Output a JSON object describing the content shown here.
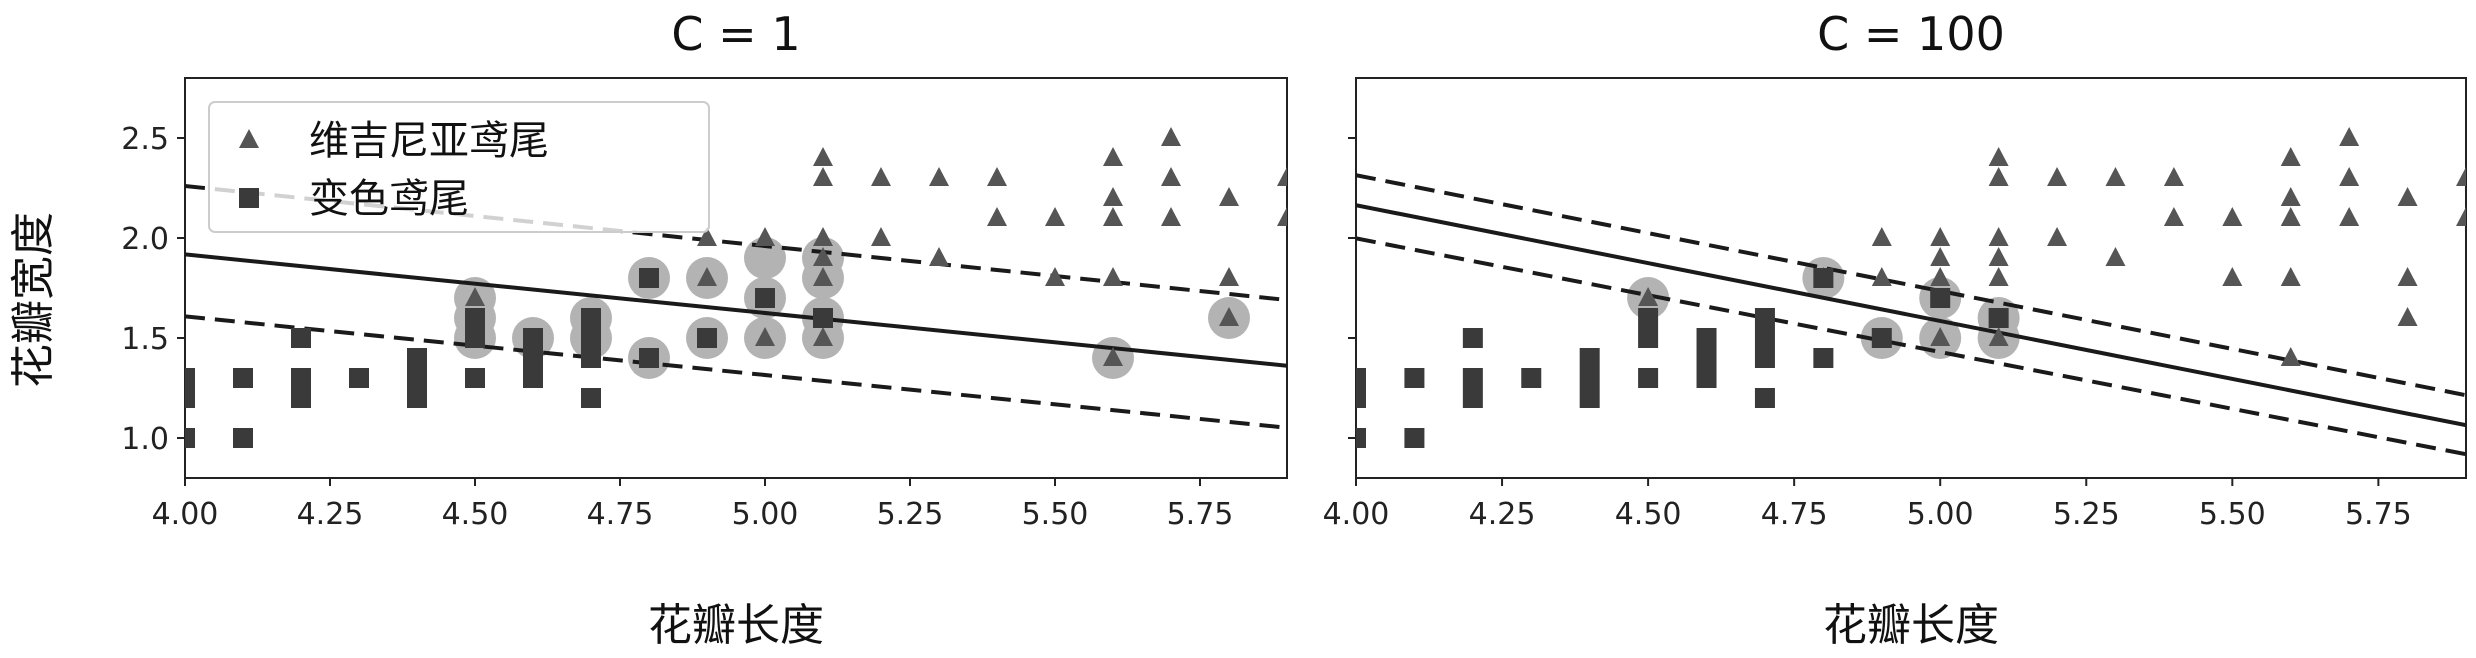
{
  "ylabel": "花瓣宽度",
  "chart_data": [
    {
      "type": "scatter",
      "title": "C = 1",
      "xlabel": "花瓣长度",
      "ylabel": "花瓣宽度",
      "xlim": [
        4.0,
        5.9
      ],
      "ylim": [
        0.8,
        2.8
      ],
      "xticks": [
        "4.00",
        "4.25",
        "4.50",
        "4.75",
        "5.00",
        "5.25",
        "5.50",
        "5.75"
      ],
      "yticks": [
        "1.0",
        "1.5",
        "2.0",
        "2.5"
      ],
      "legend": {
        "placement": "top-left",
        "entries": [
          "维吉尼亚鸢尾",
          "变色鸢尾"
        ]
      },
      "decision_boundary": {
        "slope": -0.293,
        "intercept": 3.09
      },
      "margin_upper": {
        "slope": -0.3,
        "intercept": 3.46
      },
      "margin_lower": {
        "slope": -0.293,
        "intercept": 2.78
      },
      "series": [
        {
          "name": "维吉尼亚鸢尾",
          "marker": "triangle",
          "color": "#555555",
          "points": [
            [
              4.5,
              1.7
            ],
            [
              4.9,
              1.8
            ],
            [
              5.0,
              1.5
            ],
            [
              5.1,
              1.8
            ],
            [
              5.0,
              2.0
            ],
            [
              4.9,
              2.0
            ],
            [
              5.1,
              1.5
            ],
            [
              5.1,
              1.9
            ],
            [
              5.1,
              2.0
            ],
            [
              5.1,
              2.3
            ],
            [
              5.1,
              2.4
            ],
            [
              5.2,
              2.0
            ],
            [
              5.2,
              2.3
            ],
            [
              5.3,
              1.9
            ],
            [
              5.3,
              2.3
            ],
            [
              5.4,
              2.1
            ],
            [
              5.4,
              2.3
            ],
            [
              5.5,
              1.8
            ],
            [
              5.5,
              2.1
            ],
            [
              5.6,
              1.4
            ],
            [
              5.6,
              1.8
            ],
            [
              5.6,
              2.1
            ],
            [
              5.6,
              2.2
            ],
            [
              5.6,
              2.4
            ],
            [
              5.7,
              2.1
            ],
            [
              5.7,
              2.3
            ],
            [
              5.7,
              2.5
            ],
            [
              5.8,
              1.6
            ],
            [
              5.8,
              1.8
            ],
            [
              5.8,
              2.2
            ],
            [
              5.9,
              2.1
            ],
            [
              5.9,
              2.3
            ]
          ]
        },
        {
          "name": "变色鸢尾",
          "marker": "square",
          "color": "#3a3a3a",
          "points": [
            [
              4.0,
              1.0
            ],
            [
              4.0,
              1.2
            ],
            [
              4.0,
              1.3
            ],
            [
              4.1,
              1.0
            ],
            [
              4.1,
              1.3
            ],
            [
              4.2,
              1.2
            ],
            [
              4.2,
              1.3
            ],
            [
              4.2,
              1.5
            ],
            [
              4.3,
              1.3
            ],
            [
              4.4,
              1.2
            ],
            [
              4.4,
              1.3
            ],
            [
              4.4,
              1.4
            ],
            [
              4.5,
              1.3
            ],
            [
              4.5,
              1.5
            ],
            [
              4.5,
              1.6
            ],
            [
              4.6,
              1.3
            ],
            [
              4.6,
              1.4
            ],
            [
              4.6,
              1.5
            ],
            [
              4.7,
              1.2
            ],
            [
              4.7,
              1.4
            ],
            [
              4.7,
              1.5
            ],
            [
              4.7,
              1.6
            ],
            [
              4.8,
              1.4
            ],
            [
              4.8,
              1.8
            ],
            [
              4.9,
              1.5
            ],
            [
              5.0,
              1.7
            ],
            [
              5.1,
              1.6
            ]
          ]
        }
      ],
      "support_vectors": [
        [
          4.5,
          1.5
        ],
        [
          4.5,
          1.6
        ],
        [
          4.5,
          1.7
        ],
        [
          4.6,
          1.5
        ],
        [
          4.7,
          1.5
        ],
        [
          4.7,
          1.6
        ],
        [
          4.8,
          1.4
        ],
        [
          4.8,
          1.8
        ],
        [
          4.9,
          1.5
        ],
        [
          4.9,
          1.8
        ],
        [
          5.0,
          1.5
        ],
        [
          5.0,
          1.7
        ],
        [
          5.0,
          1.9
        ],
        [
          5.1,
          1.5
        ],
        [
          5.1,
          1.6
        ],
        [
          5.1,
          1.8
        ],
        [
          5.1,
          1.9
        ],
        [
          5.6,
          1.4
        ],
        [
          5.8,
          1.6
        ]
      ]
    },
    {
      "type": "scatter",
      "title": "C = 100",
      "xlabel": "花瓣长度",
      "xlim": [
        4.0,
        5.9
      ],
      "ylim": [
        0.8,
        2.8
      ],
      "xticks": [
        "4.00",
        "4.25",
        "4.50",
        "4.75",
        "5.00",
        "5.25",
        "5.50",
        "5.75"
      ],
      "decision_boundary": {
        "slope": -0.579,
        "intercept": 4.48
      },
      "margin_upper": {
        "slope": -0.579,
        "intercept": 4.63
      },
      "margin_lower": {
        "slope": -0.568,
        "intercept": 4.27
      },
      "series": [
        {
          "name": "维吉尼亚鸢尾",
          "marker": "triangle",
          "color": "#555555",
          "points": [
            [
              4.5,
              1.7
            ],
            [
              4.8,
              1.8
            ],
            [
              4.9,
              1.8
            ],
            [
              4.9,
              2.0
            ],
            [
              5.0,
              1.5
            ],
            [
              5.0,
              1.8
            ],
            [
              5.0,
              1.9
            ],
            [
              5.0,
              2.0
            ],
            [
              5.1,
              1.5
            ],
            [
              5.1,
              1.8
            ],
            [
              5.1,
              1.9
            ],
            [
              5.1,
              2.0
            ],
            [
              5.1,
              2.3
            ],
            [
              5.1,
              2.4
            ],
            [
              5.2,
              2.0
            ],
            [
              5.2,
              2.3
            ],
            [
              5.3,
              1.9
            ],
            [
              5.3,
              2.3
            ],
            [
              5.4,
              2.1
            ],
            [
              5.4,
              2.3
            ],
            [
              5.5,
              1.8
            ],
            [
              5.5,
              2.1
            ],
            [
              5.6,
              1.4
            ],
            [
              5.6,
              1.8
            ],
            [
              5.6,
              2.1
            ],
            [
              5.6,
              2.2
            ],
            [
              5.6,
              2.4
            ],
            [
              5.7,
              2.1
            ],
            [
              5.7,
              2.3
            ],
            [
              5.7,
              2.5
            ],
            [
              5.8,
              1.6
            ],
            [
              5.8,
              1.8
            ],
            [
              5.8,
              2.2
            ],
            [
              5.9,
              2.1
            ],
            [
              5.9,
              2.3
            ]
          ]
        },
        {
          "name": "变色鸢尾",
          "marker": "square",
          "color": "#3a3a3a",
          "points": [
            [
              4.0,
              1.0
            ],
            [
              4.0,
              1.2
            ],
            [
              4.0,
              1.3
            ],
            [
              4.1,
              1.0
            ],
            [
              4.1,
              1.3
            ],
            [
              4.2,
              1.2
            ],
            [
              4.2,
              1.3
            ],
            [
              4.2,
              1.5
            ],
            [
              4.3,
              1.3
            ],
            [
              4.4,
              1.2
            ],
            [
              4.4,
              1.3
            ],
            [
              4.4,
              1.4
            ],
            [
              4.5,
              1.3
            ],
            [
              4.5,
              1.5
            ],
            [
              4.5,
              1.6
            ],
            [
              4.6,
              1.3
            ],
            [
              4.6,
              1.4
            ],
            [
              4.6,
              1.5
            ],
            [
              4.7,
              1.2
            ],
            [
              4.7,
              1.4
            ],
            [
              4.7,
              1.5
            ],
            [
              4.7,
              1.6
            ],
            [
              4.8,
              1.4
            ],
            [
              4.8,
              1.8
            ],
            [
              4.9,
              1.5
            ],
            [
              5.0,
              1.7
            ],
            [
              5.1,
              1.6
            ]
          ]
        }
      ],
      "support_vectors": [
        [
          4.5,
          1.7
        ],
        [
          4.8,
          1.8
        ],
        [
          4.9,
          1.5
        ],
        [
          5.0,
          1.5
        ],
        [
          5.0,
          1.7
        ],
        [
          5.1,
          1.5
        ],
        [
          5.1,
          1.6
        ]
      ]
    }
  ]
}
